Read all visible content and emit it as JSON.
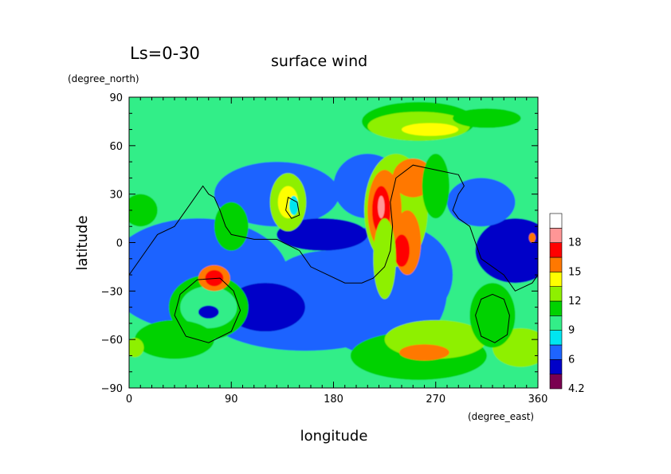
{
  "chart_data": {
    "type": "heatmap",
    "title": "surface wind",
    "subtitle": "Ls=0-30",
    "xlabel": "longitude",
    "ylabel": "latitude",
    "x_unit": "(degree_east)",
    "y_unit": "(degree_north)",
    "xlim": [
      0,
      360
    ],
    "ylim": [
      -90,
      90
    ],
    "x_ticks": [
      0,
      90,
      180,
      270,
      360
    ],
    "x_tick_labels": [
      "0",
      "90",
      "180",
      "270",
      "360"
    ],
    "y_ticks": [
      90,
      60,
      30,
      0,
      -30,
      -60,
      -90
    ],
    "y_tick_labels": [
      "90",
      "60",
      "30",
      "0",
      "−30",
      "−60",
      "−90"
    ],
    "colorbar": {
      "levels": [
        4.2,
        4.5,
        6,
        7.5,
        9,
        10.5,
        12,
        13.5,
        15,
        16.5,
        18,
        19.5,
        21
      ],
      "colors": [
        "#7a0050",
        "#0000c8",
        "#1e64ff",
        "#00e6f0",
        "#33ee88",
        "#00d200",
        "#8ef000",
        "#ffff00",
        "#ff7800",
        "#ff0000",
        "#ff9696",
        "#ffffff"
      ],
      "tick_values": [
        4.2,
        6,
        9,
        12,
        15,
        18
      ],
      "tick_labels": [
        "4.2",
        "6",
        "9",
        "12",
        "15",
        "18"
      ]
    },
    "background_level": 9,
    "field_regions": [
      {
        "kind": "band",
        "lat_min": 60,
        "lat_max": 85,
        "value": 10
      },
      {
        "kind": "band",
        "lat_min": -85,
        "lat_max": -60,
        "value": 10
      },
      {
        "kind": "blob",
        "lon": 60,
        "lat": -20,
        "rlon": 80,
        "rlat": 35,
        "value": 7
      },
      {
        "kind": "blob",
        "lon": 220,
        "lat": -30,
        "rlon": 60,
        "rlat": 40,
        "value": 7
      },
      {
        "kind": "blob",
        "lon": 130,
        "lat": 30,
        "rlon": 55,
        "rlat": 20,
        "value": 6.5
      },
      {
        "kind": "blob",
        "lon": 210,
        "lat": 35,
        "rlon": 30,
        "rlat": 20,
        "value": 6.5
      },
      {
        "kind": "blob",
        "lon": 240,
        "lat": -20,
        "rlon": 45,
        "rlat": 30,
        "value": 7
      },
      {
        "kind": "blob",
        "lon": 155,
        "lat": -45,
        "rlon": 85,
        "rlat": 22,
        "value": 6.5
      },
      {
        "kind": "blob",
        "lon": 175,
        "lat": -30,
        "rlon": 55,
        "rlat": 25,
        "value": 6.2
      },
      {
        "kind": "blob",
        "lon": 120,
        "lat": -40,
        "rlon": 35,
        "rlat": 15,
        "value": 5
      },
      {
        "kind": "blob",
        "lon": 170,
        "lat": 5,
        "rlon": 40,
        "rlat": 10,
        "value": 5
      },
      {
        "kind": "blob",
        "lon": 340,
        "lat": -5,
        "rlon": 35,
        "rlat": 20,
        "value": 5.5
      },
      {
        "kind": "blob",
        "lon": 310,
        "lat": 25,
        "rlon": 30,
        "rlat": 15,
        "value": 7
      },
      {
        "kind": "blob",
        "lon": 20,
        "lat": -20,
        "rlon": 25,
        "rlat": 20,
        "value": 7.2
      },
      {
        "kind": "blob",
        "lon": 255,
        "lat": 75,
        "rlon": 50,
        "rlat": 12,
        "value": 11
      },
      {
        "kind": "blob",
        "lon": 255,
        "lat": 72,
        "rlon": 45,
        "rlat": 9,
        "value": 12.5
      },
      {
        "kind": "blob",
        "lon": 265,
        "lat": 70,
        "rlon": 25,
        "rlat": 4,
        "value": 14.5
      },
      {
        "kind": "blob",
        "lon": 315,
        "lat": 77,
        "rlon": 30,
        "rlat": 6,
        "value": 10.8
      },
      {
        "kind": "blob",
        "lon": 255,
        "lat": -70,
        "rlon": 60,
        "rlat": 15,
        "value": 11.5
      },
      {
        "kind": "blob",
        "lon": 270,
        "lat": -60,
        "rlon": 45,
        "rlat": 12,
        "value": 13.2
      },
      {
        "kind": "blob",
        "lon": 260,
        "lat": -68,
        "rlon": 22,
        "rlat": 5,
        "value": 15.5
      },
      {
        "kind": "blob",
        "lon": 70,
        "lat": -40,
        "rlon": 35,
        "rlat": 20,
        "value": 11
      },
      {
        "kind": "blob",
        "lon": 70,
        "lat": -40,
        "rlon": 25,
        "rlat": 13,
        "value": 9.5
      },
      {
        "kind": "blob",
        "lon": 75,
        "lat": -22,
        "rlon": 14,
        "rlat": 8,
        "value": 15
      },
      {
        "kind": "blob",
        "lon": 75,
        "lat": -22,
        "rlon": 8,
        "rlat": 5,
        "value": 16.5
      },
      {
        "kind": "blob",
        "lon": 70,
        "lat": -43,
        "rlon": 9,
        "rlat": 4,
        "value": 5.5
      },
      {
        "kind": "blob",
        "lon": 140,
        "lat": 25,
        "rlon": 16,
        "rlat": 18,
        "value": 12
      },
      {
        "kind": "blob",
        "lon": 140,
        "lat": 25,
        "rlon": 9,
        "rlat": 10,
        "value": 14
      },
      {
        "kind": "blob",
        "lon": 145,
        "lat": 23,
        "rlon": 4,
        "rlat": 6,
        "value": 8.5
      },
      {
        "kind": "blob",
        "lon": 235,
        "lat": 20,
        "rlon": 28,
        "rlat": 35,
        "value": 13
      },
      {
        "kind": "blob",
        "lon": 225,
        "lat": 20,
        "rlon": 15,
        "rlat": 25,
        "value": 15.5
      },
      {
        "kind": "blob",
        "lon": 222,
        "lat": 20,
        "rlon": 8,
        "rlat": 15,
        "value": 17
      },
      {
        "kind": "blob",
        "lon": 222,
        "lat": 22,
        "rlon": 3,
        "rlat": 7,
        "value": 19
      },
      {
        "kind": "blob",
        "lon": 250,
        "lat": 40,
        "rlon": 18,
        "rlat": 12,
        "value": 15.5
      },
      {
        "kind": "blob",
        "lon": 245,
        "lat": 0,
        "rlon": 12,
        "rlat": 20,
        "value": 15.5
      },
      {
        "kind": "blob",
        "lon": 240,
        "lat": -5,
        "rlon": 7,
        "rlat": 10,
        "value": 16.8
      },
      {
        "kind": "blob",
        "lon": 225,
        "lat": -10,
        "rlon": 10,
        "rlat": 25,
        "value": 12
      },
      {
        "kind": "blob",
        "lon": 270,
        "lat": 35,
        "rlon": 12,
        "rlat": 20,
        "value": 11
      },
      {
        "kind": "blob",
        "lon": 40,
        "lat": -60,
        "rlon": 35,
        "rlat": 12,
        "value": 11
      },
      {
        "kind": "blob",
        "lon": 345,
        "lat": -65,
        "rlon": 25,
        "rlat": 12,
        "value": 13
      },
      {
        "kind": "blob",
        "lon": 320,
        "lat": -45,
        "rlon": 20,
        "rlat": 20,
        "value": 10.7
      },
      {
        "kind": "blob",
        "lon": 5,
        "lat": -65,
        "rlon": 8,
        "rlat": 6,
        "value": 13
      },
      {
        "kind": "blob",
        "lon": 10,
        "lat": 20,
        "rlon": 15,
        "rlat": 10,
        "value": 10.5
      },
      {
        "kind": "blob",
        "lon": 90,
        "lat": 10,
        "rlon": 15,
        "rlat": 15,
        "value": 10.5
      },
      {
        "kind": "blob",
        "lon": 355,
        "lat": 3,
        "rlon": 3,
        "rlat": 3,
        "value": 16
      }
    ],
    "contour_lines": [
      {
        "name": "outline-west",
        "points": [
          [
            0,
            -20
          ],
          [
            15,
            -5
          ],
          [
            25,
            5
          ],
          [
            40,
            10
          ],
          [
            55,
            25
          ],
          [
            65,
            35
          ],
          [
            70,
            30
          ],
          [
            75,
            28
          ],
          [
            80,
            20
          ],
          [
            85,
            10
          ],
          [
            90,
            5
          ],
          [
            110,
            2
          ],
          [
            130,
            2
          ],
          [
            150,
            -5
          ],
          [
            160,
            -15
          ],
          [
            175,
            -20
          ],
          [
            190,
            -25
          ],
          [
            205,
            -25
          ],
          [
            215,
            -22
          ],
          [
            225,
            -15
          ],
          [
            230,
            -5
          ]
        ]
      },
      {
        "name": "outline-east",
        "points": [
          [
            230,
            -5
          ],
          [
            232,
            10
          ],
          [
            230,
            25
          ],
          [
            235,
            40
          ],
          [
            250,
            48
          ],
          [
            270,
            45
          ],
          [
            290,
            42
          ],
          [
            295,
            35
          ],
          [
            290,
            30
          ],
          [
            285,
            20
          ],
          [
            290,
            15
          ],
          [
            300,
            10
          ],
          [
            305,
            0
          ],
          [
            310,
            -10
          ],
          [
            330,
            -20
          ],
          [
            340,
            -30
          ],
          [
            355,
            -25
          ],
          [
            360,
            -20
          ]
        ]
      },
      {
        "name": "basin-west",
        "points": [
          [
            80,
            -22
          ],
          [
            92,
            -30
          ],
          [
            98,
            -42
          ],
          [
            90,
            -55
          ],
          [
            70,
            -62
          ],
          [
            50,
            -58
          ],
          [
            40,
            -45
          ],
          [
            45,
            -32
          ],
          [
            60,
            -23
          ]
        ]
      },
      {
        "name": "basin-north",
        "points": [
          [
            140,
            28
          ],
          [
            148,
            25
          ],
          [
            150,
            17
          ],
          [
            143,
            15
          ],
          [
            138,
            20
          ]
        ]
      },
      {
        "name": "basin-east",
        "points": [
          [
            330,
            -35
          ],
          [
            335,
            -45
          ],
          [
            333,
            -57
          ],
          [
            322,
            -62
          ],
          [
            310,
            -58
          ],
          [
            305,
            -45
          ],
          [
            310,
            -35
          ],
          [
            320,
            -32
          ]
        ]
      }
    ]
  }
}
